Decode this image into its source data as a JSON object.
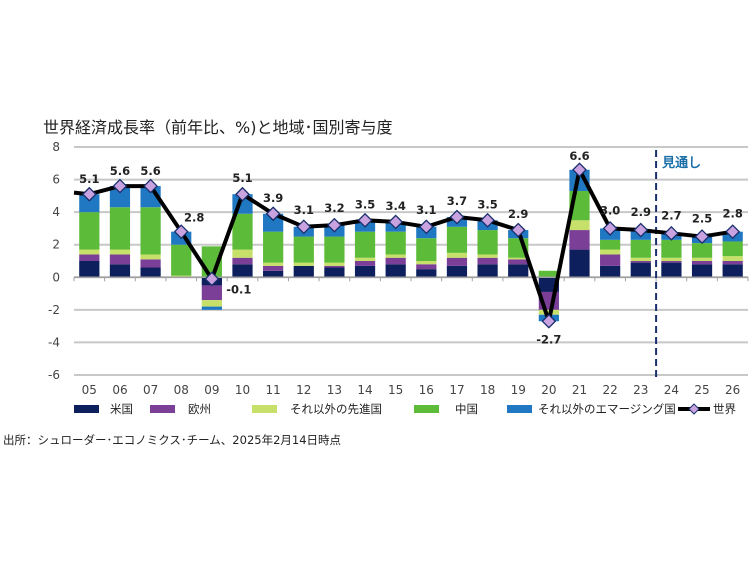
{
  "chart_data": {
    "type": "bar",
    "stacked": true,
    "title": "世界経済成長率（前年比、%)と地域･国別寄与度",
    "categories": [
      "05",
      "06",
      "07",
      "08",
      "09",
      "10",
      "11",
      "12",
      "13",
      "14",
      "15",
      "16",
      "17",
      "18",
      "19",
      "20",
      "21",
      "22",
      "23",
      "24",
      "25",
      "26"
    ],
    "ylim": [
      -6,
      8
    ],
    "yticks": [
      8,
      6,
      4,
      2,
      0,
      -2,
      -4,
      -6
    ],
    "grid": true,
    "legend_position": "bottom",
    "series": [
      {
        "name": "米国",
        "color": "#0d1f5c",
        "values": [
          1.0,
          0.8,
          0.6,
          0.0,
          -0.5,
          0.8,
          0.4,
          0.7,
          0.6,
          0.7,
          0.8,
          0.5,
          0.7,
          0.8,
          0.8,
          -0.9,
          1.7,
          0.7,
          0.9,
          0.9,
          0.8,
          0.8
        ]
      },
      {
        "name": "欧州",
        "color": "#7b3f98",
        "values": [
          0.4,
          0.6,
          0.5,
          0.0,
          -0.9,
          0.4,
          0.3,
          0.0,
          0.1,
          0.3,
          0.4,
          0.3,
          0.5,
          0.4,
          0.3,
          -1.1,
          1.2,
          0.7,
          0.1,
          0.1,
          0.2,
          0.2
        ]
      },
      {
        "name": "それ以外の先進国",
        "color": "#c7e06a",
        "values": [
          0.3,
          0.3,
          0.3,
          0.1,
          -0.4,
          0.5,
          0.2,
          0.2,
          0.2,
          0.2,
          0.2,
          0.2,
          0.3,
          0.2,
          0.1,
          -0.3,
          0.6,
          0.3,
          0.2,
          0.2,
          0.2,
          0.3
        ]
      },
      {
        "name": "中国",
        "color": "#5dbb3a",
        "values": [
          2.3,
          2.6,
          2.9,
          1.9,
          1.9,
          2.2,
          1.9,
          1.6,
          1.6,
          1.6,
          1.4,
          1.4,
          1.6,
          1.5,
          1.2,
          0.4,
          1.8,
          0.6,
          1.1,
          1.1,
          0.9,
          0.9
        ]
      },
      {
        "name": "それ以外のエマージング国",
        "color": "#1f78c1",
        "values": [
          1.1,
          1.3,
          1.3,
          0.8,
          -0.2,
          1.2,
          1.1,
          0.6,
          0.7,
          0.7,
          0.6,
          0.7,
          0.6,
          0.6,
          0.5,
          -0.4,
          1.3,
          0.7,
          0.6,
          0.4,
          0.4,
          0.6
        ]
      },
      {
        "name": "世界",
        "type": "line",
        "color": "#000000",
        "marker_color": "#c9a3e0",
        "values": [
          5.1,
          5.6,
          5.6,
          2.8,
          -0.1,
          5.1,
          3.9,
          3.1,
          3.2,
          3.5,
          3.4,
          3.1,
          3.7,
          3.5,
          2.9,
          -2.7,
          6.6,
          3.0,
          2.9,
          2.7,
          2.5,
          2.8
        ]
      }
    ],
    "data_labels": [
      "5.1",
      "5.6",
      "5.6",
      "2.8",
      "-0.1",
      "5.1",
      "3.9",
      "3.1",
      "3.2",
      "3.5",
      "3.4",
      "3.1",
      "3.7",
      "3.5",
      "2.9",
      "-2.7",
      "6.6",
      "3.0",
      "2.9",
      "2.7",
      "2.5",
      "2.8"
    ],
    "forecast_label": "見通し",
    "forecast_from": "24"
  },
  "source": "出所：シュローダー･エコノミクス･チーム、2025年2月14日時点"
}
